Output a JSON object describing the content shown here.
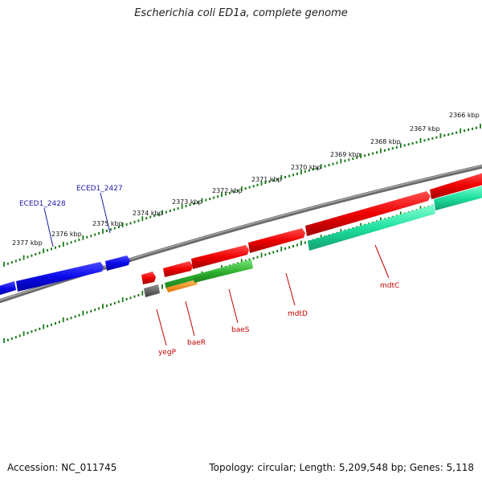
{
  "title": "Escherichia coli ED1a, complete genome",
  "footer": {
    "accession": "Accession: NC_011745",
    "summary": "Topology: circular; Length: 5,209,548 bp; Genes: 5,118"
  },
  "colors": {
    "backbone": "#808080",
    "ticks": "#1a7a1a",
    "blue_genes": "#1010e0",
    "red_genes": "#e60000",
    "green_genes": "#30b030",
    "teal_genes": "#20e0a0",
    "orange_genes": "#f08000",
    "gray_genes": "#606060"
  },
  "ticks_outer": [
    "2377 kbp",
    "2376 kbp",
    "2375 kbp",
    "2374 kbp",
    "2373 kbp",
    "2372 kbp",
    "2371 kbp",
    "2370 kbp",
    "2369 kbp",
    "2368 kbp",
    "2367 kbp",
    "2366 kbp"
  ],
  "genes_blue": [
    "ECED1_2428",
    "ECED1_2427"
  ],
  "genes_red": [
    "yegP",
    "baeR",
    "baeS",
    "mdtD",
    "mdtC"
  ]
}
